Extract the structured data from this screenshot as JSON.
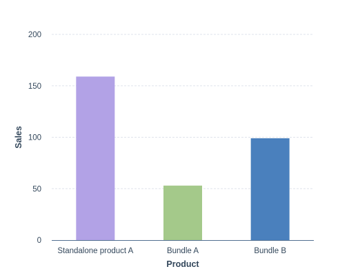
{
  "chart_data": {
    "type": "bar",
    "title": "",
    "xlabel": "Product",
    "ylabel": "Sales",
    "categories": [
      "Standalone product A",
      "Bundle A",
      "Bundle B"
    ],
    "values": [
      159,
      53,
      99
    ],
    "colors": [
      "#b2a2e6",
      "#a4c98a",
      "#4a80bd"
    ],
    "ylim": [
      0,
      200
    ],
    "yticks": [
      "0",
      "50",
      "100",
      "150",
      "200"
    ],
    "grid": true,
    "legend": "none"
  }
}
